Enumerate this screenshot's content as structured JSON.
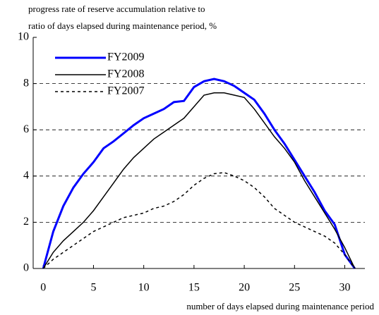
{
  "chart_data": {
    "type": "line",
    "title": "progress rate of reserve accumulation relative to",
    "subtitle": "ratio of days elapsed during maintenance period, %",
    "x_label": "number of days elapsed during maintenance period",
    "x": [
      0,
      1,
      2,
      3,
      4,
      5,
      6,
      7,
      8,
      9,
      10,
      11,
      12,
      13,
      14,
      15,
      16,
      17,
      18,
      19,
      20,
      21,
      22,
      23,
      24,
      25,
      26,
      27,
      28,
      29,
      30,
      31
    ],
    "series": [
      {
        "name": "FY2009",
        "color": "#0000ff",
        "style": "solid",
        "width": 3,
        "values": [
          0,
          1.6,
          2.7,
          3.5,
          4.1,
          4.6,
          5.2,
          5.5,
          5.85,
          6.2,
          6.5,
          6.7,
          6.9,
          7.2,
          7.25,
          7.85,
          8.1,
          8.2,
          8.1,
          7.9,
          7.6,
          7.3,
          6.7,
          6.0,
          5.4,
          4.7,
          4.0,
          3.3,
          2.5,
          1.9,
          0.6,
          0
        ]
      },
      {
        "name": "FY2008",
        "color": "#000000",
        "style": "solid",
        "width": 1.5,
        "values": [
          0,
          0.7,
          1.2,
          1.6,
          2.0,
          2.5,
          3.1,
          3.7,
          4.3,
          4.8,
          5.2,
          5.6,
          5.9,
          6.2,
          6.5,
          7.0,
          7.5,
          7.6,
          7.6,
          7.5,
          7.4,
          6.9,
          6.3,
          5.7,
          5.2,
          4.6,
          3.8,
          3.1,
          2.4,
          1.7,
          0.9,
          0
        ]
      },
      {
        "name": "FY2007",
        "color": "#000000",
        "style": "dashed",
        "width": 1.5,
        "values": [
          0,
          0.4,
          0.7,
          1.0,
          1.3,
          1.6,
          1.8,
          2.0,
          2.2,
          2.3,
          2.4,
          2.6,
          2.7,
          2.9,
          3.2,
          3.6,
          3.9,
          4.1,
          4.15,
          4.0,
          3.8,
          3.5,
          3.1,
          2.6,
          2.3,
          2.0,
          1.8,
          1.6,
          1.4,
          1.1,
          0.6,
          0
        ]
      }
    ],
    "xlim": [
      -1,
      32
    ],
    "xticks": [
      0,
      5,
      10,
      15,
      20,
      25,
      30
    ],
    "ylim": [
      0,
      10
    ],
    "yticks": [
      0,
      2,
      4,
      6,
      8,
      10
    ],
    "grid": true,
    "legend": "upper-left"
  }
}
